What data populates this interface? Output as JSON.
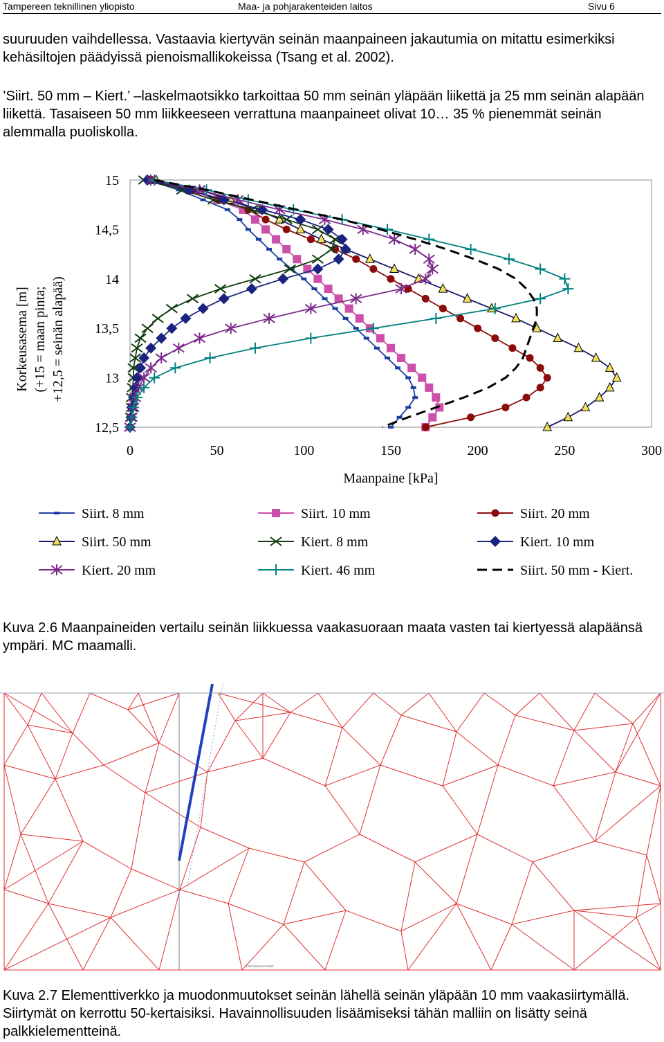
{
  "header": {
    "left": "Tampereen teknillinen yliopisto",
    "center": "Maa- ja pohjarakenteiden laitos",
    "right": "Sivu 6"
  },
  "paragraphs": [
    "suuruuden vaihdellessa. Vastaavia kiertyvän seinän maanpaineen jakautumia on mitattu esimerkiksi kehäsiltojen päädyissä pienoismallikokeissa (Tsang et al. 2002).",
    "’Siirt. 50 mm – Kiert.’ –laskelmaotsikko tarkoittaa 50 mm seinän yläpään liikettä ja 25 mm seinän alapään liikettä. Tasaiseen 50 mm liikkeeseen verrattuna maanpaineet olivat 10… 35 % pienemmät seinän alemmalla puoliskolla."
  ],
  "captions": {
    "fig_2_6": "Kuva 2.6 Maanpaineiden vertailu seinän liikkuessa vaakasuoraan maata vasten tai kiertyessä alapäänsä ympäri. MC maamalli.",
    "fig_2_7": "Kuva 2.7 Elementtiverkko ja muodonmuutokset seinän lähellä seinän yläpään 10 mm vaakasiirtymällä. Siirtymät on kerrottu 50-kertaisiksi. Havainnollisuuden lisäämiseksi tähän malliin on lisätty seinä palkkielementteinä."
  },
  "chart_data": {
    "type": "line",
    "xlabel": "Maanpaine [kPa]",
    "ylabel": [
      "Korkeusasema [m]",
      "(+15 = maan pinta;",
      "+12,5 = seinän alapää)"
    ],
    "xlim": [
      0,
      300
    ],
    "ylim": [
      12.5,
      15
    ],
    "x_ticks": [
      "0",
      "50",
      "100",
      "150",
      "200",
      "250",
      "300"
    ],
    "y_ticks": [
      "15",
      "14,5",
      "14",
      "13,5",
      "13",
      "12,5"
    ],
    "y": [
      15,
      14.9,
      14.8,
      14.7,
      14.6,
      14.5,
      14.4,
      14.3,
      14.2,
      14.1,
      14.0,
      13.9,
      13.8,
      13.7,
      13.6,
      13.5,
      13.4,
      13.3,
      13.2,
      13.1,
      13.0,
      12.9,
      12.8,
      12.7,
      12.6,
      12.5
    ],
    "legend_placement": "bottom",
    "series": [
      {
        "name": "Siirt. 8 mm",
        "color": "#1f3f9f",
        "dash": "",
        "marker": "dash",
        "x": [
          10,
          28,
          42,
          56,
          63,
          68,
          74,
          80,
          86,
          93,
          100,
          106,
          112,
          118,
          124,
          130,
          136,
          142,
          148,
          154,
          160,
          163,
          164,
          160,
          155,
          150
        ]
      },
      {
        "name": "Siirt. 10 mm",
        "color": "#cc4faa",
        "dash": "",
        "marker": "square",
        "x": [
          12,
          34,
          50,
          65,
          72,
          78,
          84,
          90,
          96,
          102,
          108,
          114,
          120,
          126,
          132,
          138,
          144,
          150,
          156,
          162,
          168,
          172,
          176,
          178,
          174,
          170
        ]
      },
      {
        "name": "Siirt. 20 mm",
        "color": "#8b0a0a",
        "dash": "",
        "marker": "circle",
        "x": [
          12,
          36,
          52,
          68,
          78,
          90,
          104,
          118,
          130,
          140,
          150,
          160,
          170,
          180,
          190,
          200,
          210,
          220,
          230,
          236,
          240,
          236,
          228,
          216,
          196,
          170
        ]
      },
      {
        "name": "Siirt. 50 mm",
        "color": "#1a1a6b",
        "dash": "",
        "marker": "triangle",
        "x": [
          15,
          40,
          58,
          74,
          86,
          98,
          110,
          124,
          138,
          152,
          166,
          180,
          194,
          208,
          222,
          234,
          246,
          258,
          268,
          276,
          280,
          276,
          270,
          262,
          252,
          240
        ]
      },
      {
        "name": "Kiert. 8 mm",
        "color": "#0f3b0f",
        "dash": "",
        "marker": "x",
        "x": [
          8,
          30,
          48,
          70,
          90,
          108,
          118,
          116,
          108,
          92,
          72,
          52,
          36,
          24,
          16,
          10,
          6,
          4,
          3,
          2,
          2,
          1.5,
          1,
          1,
          0.5,
          0
        ]
      },
      {
        "name": "Kiert. 10 mm",
        "color": "#1a237e",
        "dash": "",
        "marker": "diamond",
        "x": [
          10,
          34,
          54,
          76,
          98,
          114,
          122,
          124,
          120,
          108,
          88,
          70,
          54,
          42,
          32,
          24,
          18,
          12,
          8,
          6,
          4,
          3,
          2,
          1,
          0.5,
          0
        ]
      },
      {
        "name": "Kiert. 20 mm",
        "color": "#7b2a8a",
        "dash": "",
        "marker": "star",
        "x": [
          12,
          40,
          62,
          86,
          112,
          134,
          152,
          164,
          172,
          174,
          170,
          156,
          130,
          104,
          80,
          58,
          40,
          28,
          18,
          12,
          8,
          5,
          3,
          2,
          1,
          0
        ]
      },
      {
        "name": "Kiert. 46 mm",
        "color": "#008080",
        "dash": "",
        "marker": "plus",
        "x": [
          14,
          44,
          68,
          94,
          122,
          148,
          172,
          196,
          218,
          236,
          250,
          252,
          236,
          210,
          176,
          140,
          104,
          72,
          46,
          26,
          14,
          8,
          4,
          2,
          1,
          0
        ]
      },
      {
        "name": "Siirt. 50 mm - Kiert.",
        "color": "#000000",
        "dash": "14 8",
        "marker": "none",
        "x": [
          14,
          44,
          70,
          96,
          122,
          144,
          164,
          182,
          198,
          212,
          222,
          228,
          232,
          234,
          234,
          232,
          230,
          228,
          226,
          222,
          216,
          206,
          192,
          176,
          160,
          145
        ]
      }
    ]
  },
  "mesh": {
    "stroke_color": "#e03030",
    "wall_color": "#2040c0",
    "label": "Tekniikkasivu blank"
  }
}
